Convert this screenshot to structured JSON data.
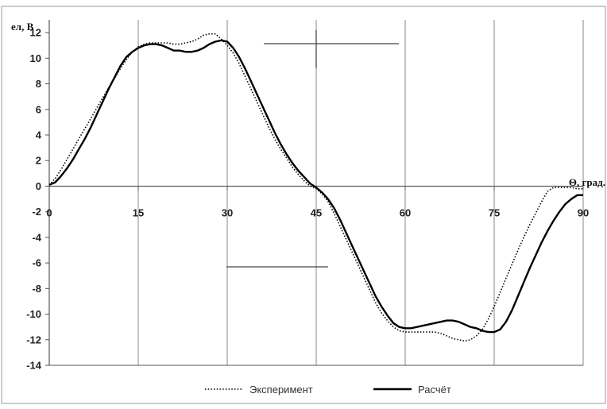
{
  "chart_data": {
    "type": "line",
    "title": "",
    "ylabel": "eл, В",
    "xlabel": "Θ, град.",
    "xlim": [
      0,
      90
    ],
    "ylim": [
      -14,
      13
    ],
    "x_ticks": [
      0,
      15,
      30,
      45,
      60,
      75,
      90
    ],
    "x_tick_labels": [
      "0",
      "15",
      "30",
      "45",
      "60",
      "75",
      "90"
    ],
    "y_ticks": [
      12,
      10,
      8,
      6,
      4,
      2,
      0,
      -2,
      -4,
      -6,
      -8,
      -10,
      -12,
      -14
    ],
    "y_tick_labels": [
      "12",
      "10",
      "8",
      "6",
      "4",
      "2",
      "0",
      "-2",
      "-4",
      "-6",
      "-8",
      "-10",
      "-12",
      "-14"
    ],
    "grid": "vertical",
    "legend_position": "bottom",
    "series": [
      {
        "name": "Эксперимент",
        "style": "dotted",
        "x": [
          0,
          1,
          2,
          3,
          4,
          5,
          6,
          7,
          8,
          9,
          10,
          11,
          12,
          13,
          14,
          15,
          16,
          17,
          18,
          19,
          20,
          21,
          22,
          23,
          24,
          25,
          26,
          27,
          28,
          29,
          30,
          31,
          32,
          33,
          34,
          35,
          36,
          37,
          38,
          39,
          40,
          41,
          42,
          43,
          44,
          45,
          46,
          47,
          48,
          49,
          50,
          51,
          52,
          53,
          54,
          55,
          56,
          57,
          58,
          59,
          60,
          61,
          62,
          63,
          64,
          65,
          66,
          67,
          68,
          69,
          70,
          71,
          72,
          73,
          74,
          75,
          76,
          77,
          78,
          79,
          80,
          81,
          82,
          83,
          84,
          85,
          86,
          87,
          88,
          89,
          90
        ],
        "y": [
          0.1,
          0.6,
          1.3,
          2.1,
          2.9,
          3.7,
          4.5,
          5.3,
          6.1,
          6.9,
          7.7,
          8.4,
          9.2,
          9.9,
          10.5,
          10.9,
          11.1,
          11.2,
          11.2,
          11.2,
          11.2,
          11.1,
          11.1,
          11.2,
          11.3,
          11.5,
          11.8,
          11.9,
          11.9,
          11.5,
          11.0,
          10.4,
          9.6,
          8.6,
          7.6,
          6.6,
          5.6,
          4.6,
          3.7,
          2.9,
          2.2,
          1.5,
          0.9,
          0.4,
          0.0,
          -0.2,
          -0.6,
          -1.2,
          -2.1,
          -3.1,
          -4.1,
          -5.1,
          -6.1,
          -7.1,
          -8.1,
          -9.1,
          -9.9,
          -10.5,
          -11.0,
          -11.3,
          -11.4,
          -11.4,
          -11.4,
          -11.4,
          -11.4,
          -11.4,
          -11.5,
          -11.7,
          -11.9,
          -12.0,
          -12.1,
          -12.0,
          -11.7,
          -11.2,
          -10.4,
          -9.4,
          -8.3,
          -7.2,
          -6.1,
          -5.0,
          -4.0,
          -3.0,
          -2.1,
          -1.2,
          -0.4,
          -0.1,
          -0.1,
          -0.1,
          -0.1,
          -0.2,
          -0.2
        ],
        "y_fixed_note": "see y"
      },
      {
        "name": "Расчёт",
        "style": "solid",
        "x": [
          0,
          1,
          2,
          3,
          4,
          5,
          6,
          7,
          8,
          9,
          10,
          11,
          12,
          13,
          14,
          15,
          16,
          17,
          18,
          19,
          20,
          21,
          22,
          23,
          24,
          25,
          26,
          27,
          28,
          29,
          30,
          31,
          32,
          33,
          34,
          35,
          36,
          37,
          38,
          39,
          40,
          41,
          42,
          43,
          44,
          45,
          46,
          47,
          48,
          49,
          50,
          51,
          52,
          53,
          54,
          55,
          56,
          57,
          58,
          59,
          60,
          61,
          62,
          63,
          64,
          65,
          66,
          67,
          68,
          69,
          70,
          71,
          72,
          73,
          74,
          75,
          76,
          77,
          78,
          79,
          80,
          81,
          82,
          83,
          84,
          85,
          86,
          87,
          88,
          89,
          90
        ],
        "y": [
          0.1,
          0.3,
          0.8,
          1.4,
          2.1,
          2.9,
          3.7,
          4.6,
          5.6,
          6.6,
          7.6,
          8.5,
          9.4,
          10.1,
          10.5,
          10.8,
          11.0,
          11.1,
          11.1,
          11.0,
          10.8,
          10.6,
          10.6,
          10.5,
          10.5,
          10.6,
          10.8,
          11.1,
          11.3,
          11.4,
          11.3,
          10.8,
          10.1,
          9.2,
          8.2,
          7.2,
          6.2,
          5.2,
          4.2,
          3.3,
          2.5,
          1.8,
          1.2,
          0.7,
          0.2,
          -0.1,
          -0.5,
          -1.0,
          -1.7,
          -2.6,
          -3.6,
          -4.6,
          -5.6,
          -6.6,
          -7.6,
          -8.6,
          -9.4,
          -10.1,
          -10.7,
          -11.0,
          -11.1,
          -11.1,
          -11.0,
          -10.9,
          -10.8,
          -10.7,
          -10.6,
          -10.5,
          -10.5,
          -10.6,
          -10.8,
          -11.0,
          -11.1,
          -11.3,
          -11.4,
          -11.4,
          -11.2,
          -10.6,
          -9.7,
          -8.6,
          -7.5,
          -6.4,
          -5.4,
          -4.4,
          -3.5,
          -2.7,
          -2.0,
          -1.4,
          -1.0,
          -0.7,
          -0.7
        ]
      }
    ]
  }
}
